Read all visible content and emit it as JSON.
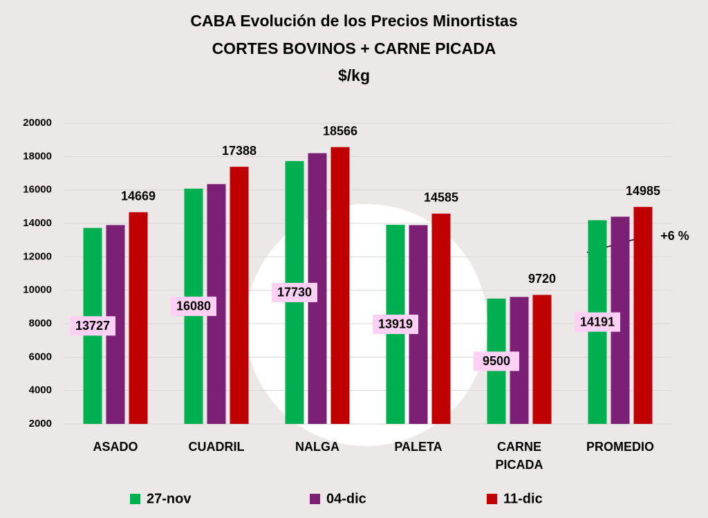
{
  "chart_data": {
    "type": "bar",
    "title": "CABA Evolución de los Precios Minortistas",
    "subtitle": "CORTES BOVINOS + CARNE PICADA",
    "unit_label": "$/kg",
    "categories": [
      "ASADO",
      "CUADRIL",
      "NALGA",
      "PALETA",
      "CARNE PICADA",
      "PROMEDIO"
    ],
    "series": [
      {
        "name": "27-nov",
        "color": "#00b050",
        "values": [
          13727,
          16080,
          17730,
          13919,
          9500,
          14191
        ]
      },
      {
        "name": "04-dic",
        "color": "#7b2075",
        "values": [
          13900,
          16350,
          18200,
          13900,
          9600,
          14400
        ]
      },
      {
        "name": "11-dic",
        "color": "#c00000",
        "values": [
          14669,
          17388,
          18566,
          14585,
          9720,
          14985
        ]
      }
    ],
    "ylim": [
      2000,
      20000
    ],
    "yticks": [
      2000,
      4000,
      6000,
      8000,
      10000,
      12000,
      14000,
      16000,
      18000,
      20000
    ],
    "grid": true,
    "legend": "bottom",
    "annotation": "+6 %"
  }
}
